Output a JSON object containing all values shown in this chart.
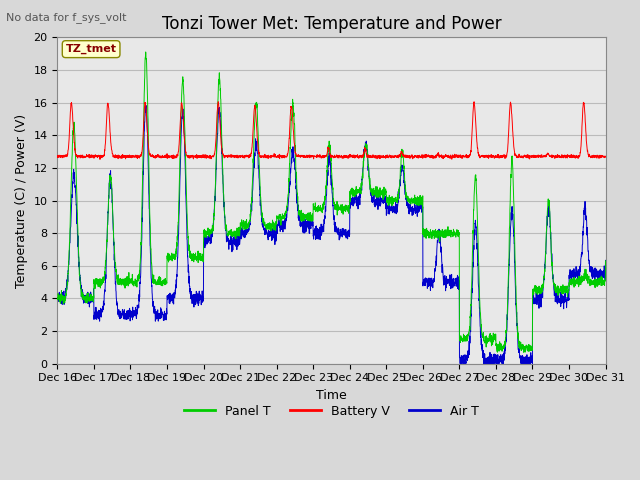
{
  "title": "Tonzi Tower Met: Temperature and Power",
  "subtitle": "No data for f_sys_volt",
  "xlabel": "Time",
  "ylabel": "Temperature (C) / Power (V)",
  "ylim": [
    0,
    20
  ],
  "yticks": [
    0,
    2,
    4,
    6,
    8,
    10,
    12,
    14,
    16,
    18,
    20
  ],
  "xtick_labels": [
    "Dec 16",
    "Dec 17",
    "Dec 18",
    "Dec 19",
    "Dec 20",
    "Dec 21",
    "Dec 22",
    "Dec 23",
    "Dec 24",
    "Dec 25",
    "Dec 26",
    "Dec 27",
    "Dec 28",
    "Dec 29",
    "Dec 30",
    "Dec 31"
  ],
  "legend_labels": [
    "Panel T",
    "Battery V",
    "Air T"
  ],
  "legend_colors": [
    "#00cc00",
    "#ff0000",
    "#0000cc"
  ],
  "annotation_text": "TZ_tmet",
  "background_color": "#d8d8d8",
  "plot_bg_color": "#e8e8e8",
  "grid_color": "#c0c0c0",
  "title_fontsize": 12,
  "axis_fontsize": 9,
  "tick_fontsize": 8
}
